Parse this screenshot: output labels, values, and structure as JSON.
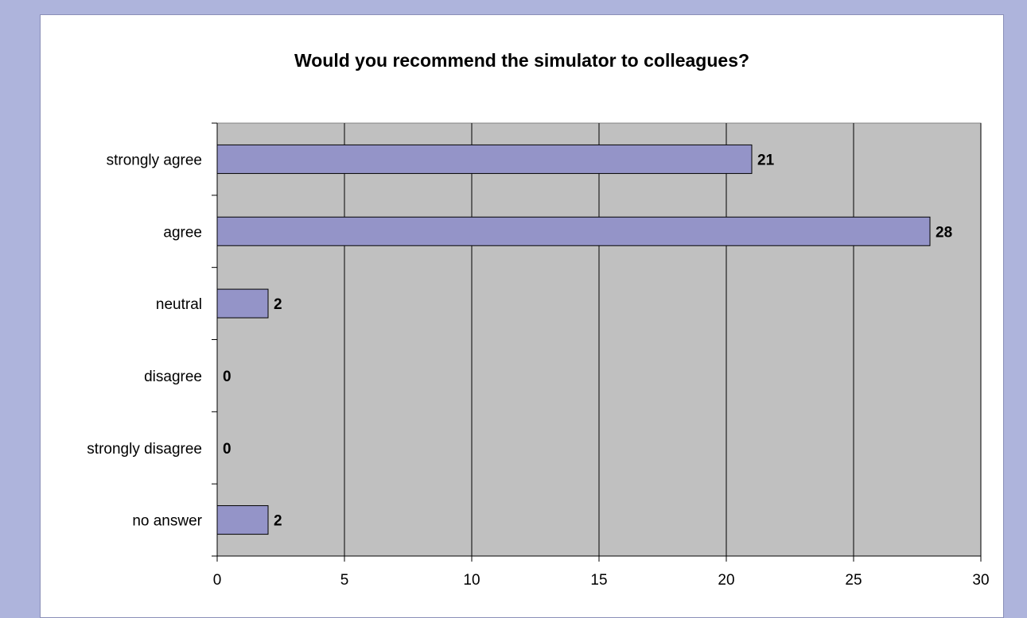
{
  "chart_data": {
    "type": "bar",
    "orientation": "horizontal",
    "title": "Would you recommend the simulator to colleagues?",
    "xlabel": "",
    "ylabel": "",
    "categories": [
      "strongly agree",
      "agree",
      "neutral",
      "disagree",
      "strongly disagree",
      "no answer"
    ],
    "values": [
      21,
      28,
      2,
      0,
      0,
      2
    ],
    "xlim": [
      0,
      30
    ],
    "xticks": [
      0,
      5,
      10,
      15,
      20,
      25,
      30
    ],
    "tick_labels": [
      "0",
      "5",
      "10",
      "15",
      "20",
      "25",
      "30"
    ],
    "data_labels": [
      "21",
      "28",
      "2",
      "0",
      "0",
      "2"
    ],
    "grid": "vertical",
    "legend": "none",
    "colors": {
      "bar_fill": "#9494c8",
      "plot_background": "#c0c0c0",
      "outer_background": "#aeb4dc",
      "panel_background": "#ffffff"
    }
  }
}
